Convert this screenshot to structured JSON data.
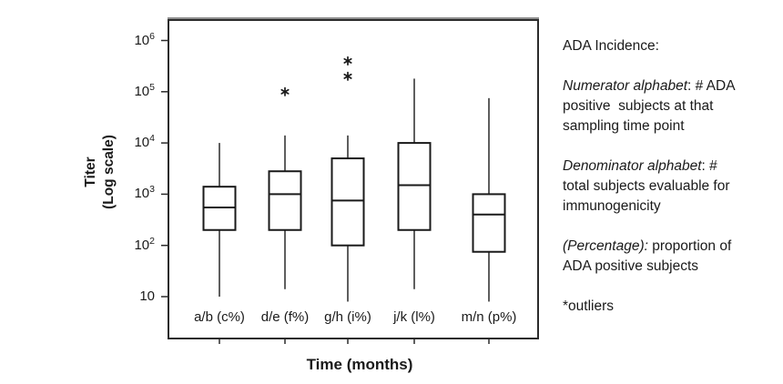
{
  "chart_data": {
    "type": "box",
    "title": "",
    "x_axis": {
      "title": "Time (months)"
    },
    "y_axis": {
      "title_lines": [
        "Titer",
        "(Log scale)"
      ],
      "scale": "log",
      "ticks": [
        {
          "base": "10",
          "exp": "6",
          "value": 1000000
        },
        {
          "base": "10",
          "exp": "5",
          "value": 100000
        },
        {
          "base": "10",
          "exp": "4",
          "value": 10000
        },
        {
          "base": "10",
          "exp": "3",
          "value": 1000
        },
        {
          "base": "10",
          "exp": "2",
          "value": 100
        },
        {
          "base": "10",
          "exp": "",
          "value": 10
        }
      ]
    },
    "categories": [
      "a/b (c%)",
      "d/e (f%)",
      "g/h (i%)",
      "j/k (l%)",
      "m/n (p%)"
    ],
    "boxes": [
      {
        "category": "a/b (c%)",
        "whisker_low": 10,
        "q1": 200,
        "median": 550,
        "q3": 1400,
        "whisker_high": 10000,
        "outliers": []
      },
      {
        "category": "d/e (f%)",
        "whisker_low": 14,
        "q1": 200,
        "median": 1000,
        "q3": 2800,
        "whisker_high": 14000,
        "outliers": [
          100000
        ]
      },
      {
        "category": "g/h (i%)",
        "whisker_low": 8,
        "q1": 100,
        "median": 750,
        "q3": 5000,
        "whisker_high": 14000,
        "outliers": [
          200000,
          400000
        ]
      },
      {
        "category": "j/k (l%)",
        "whisker_low": 14,
        "q1": 200,
        "median": 1500,
        "q3": 10000,
        "whisker_high": 180000,
        "outliers": []
      },
      {
        "category": "m/n (p%)",
        "whisker_low": 8,
        "q1": 75,
        "median": 400,
        "q3": 1000,
        "whisker_high": 75000,
        "outliers": []
      }
    ],
    "ink_color": "#1a1a1a",
    "frame_color": "#2b2b2b"
  },
  "right_panel": {
    "heading": "ADA Incidence:",
    "paragraphs": [
      {
        "lines": [
          {
            "italic": "Numerator alphabet",
            "rest": ": # ADA"
          },
          {
            "italic": "",
            "rest": "positive  subjects at that"
          },
          {
            "italic": "",
            "rest": "sampling time point"
          }
        ]
      },
      {
        "lines": [
          {
            "italic": "Denominator alphabet",
            "rest": ": #"
          },
          {
            "italic": "",
            "rest": "total subjects evaluable for"
          },
          {
            "italic": "",
            "rest": "immunogenicity"
          }
        ]
      },
      {
        "lines": [
          {
            "italic": "(Percentage):",
            "rest": " proportion of"
          },
          {
            "italic": "",
            "rest": "ADA positive subjects"
          }
        ]
      },
      {
        "lines": [
          {
            "italic": "",
            "rest": "*outliers"
          }
        ]
      }
    ]
  }
}
